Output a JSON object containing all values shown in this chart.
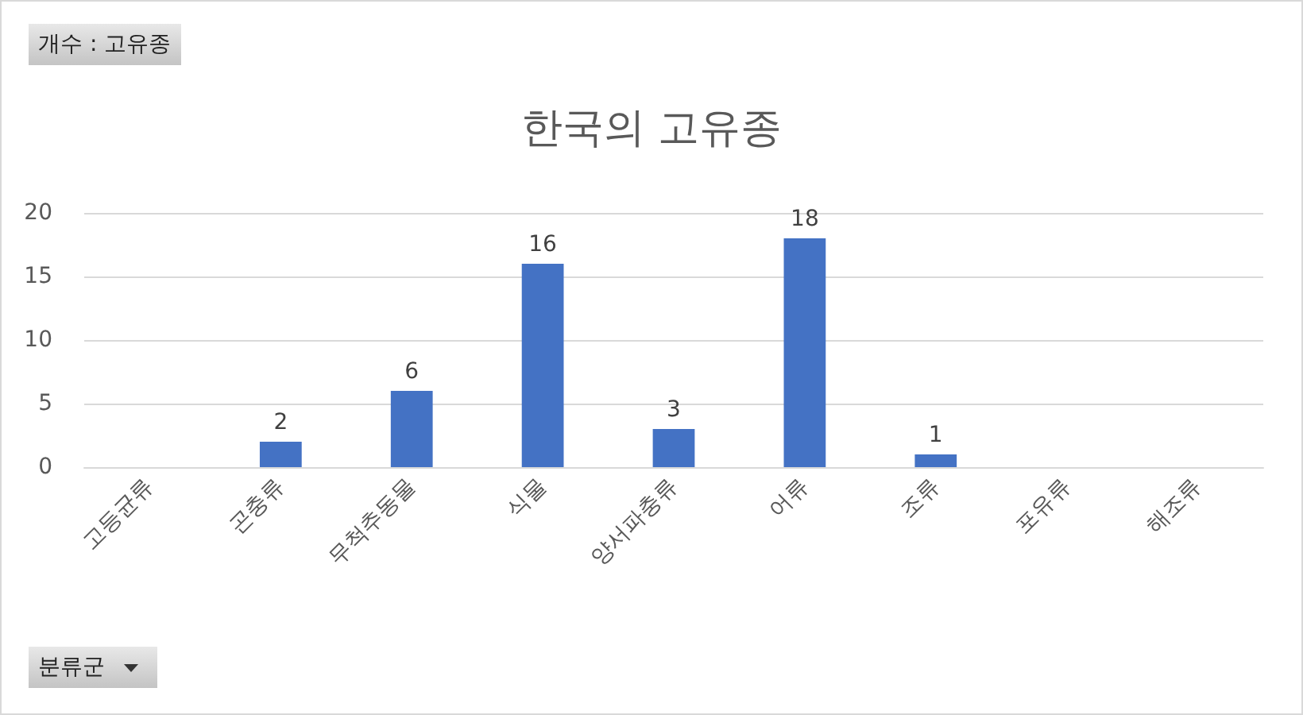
{
  "chart_data": {
    "type": "bar",
    "title": "한국의 고유종",
    "categories": [
      "고등균류",
      "곤충류",
      "무척추동물",
      "식물",
      "양서파충류",
      "어류",
      "조류",
      "포유류",
      "해조류"
    ],
    "values": [
      null,
      2,
      6,
      16,
      3,
      18,
      1,
      null,
      null
    ],
    "color": "#4472c4",
    "ylim": [
      0,
      20
    ],
    "yticks": [
      0,
      5,
      10,
      15,
      20
    ],
    "grid": "y",
    "data_labels": true,
    "annotations": [
      "개수 : 고유종",
      "분류군"
    ]
  }
}
